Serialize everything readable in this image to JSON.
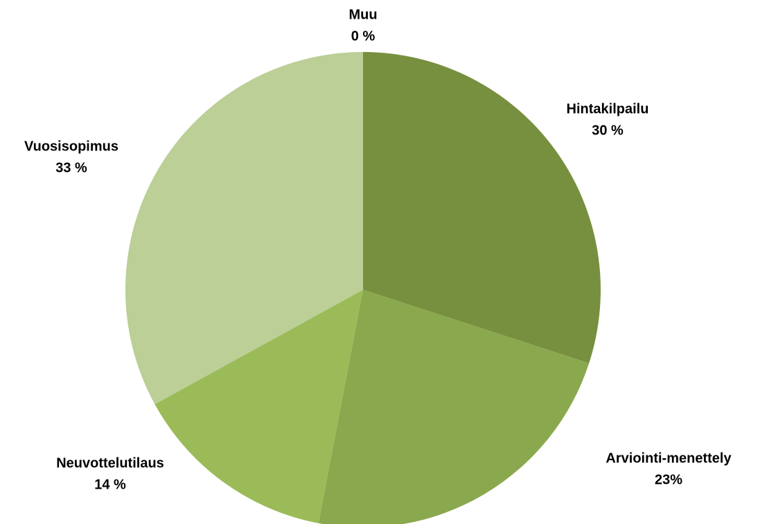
{
  "chart_data": {
    "type": "pie",
    "categories": [
      "Hintakilpailu",
      "Arviointi-menettely",
      "Neuvottelutilaus",
      "Vuosisopimus",
      "Muu"
    ],
    "values": [
      30,
      23,
      14,
      33,
      0
    ],
    "value_labels": [
      "30 %",
      "23%",
      "14 %",
      "33 %",
      "0 %"
    ],
    "colors": [
      "#77903f",
      "#8aa84e",
      "#9bbb59",
      "#bbcf96",
      "#d7e4bd"
    ]
  }
}
